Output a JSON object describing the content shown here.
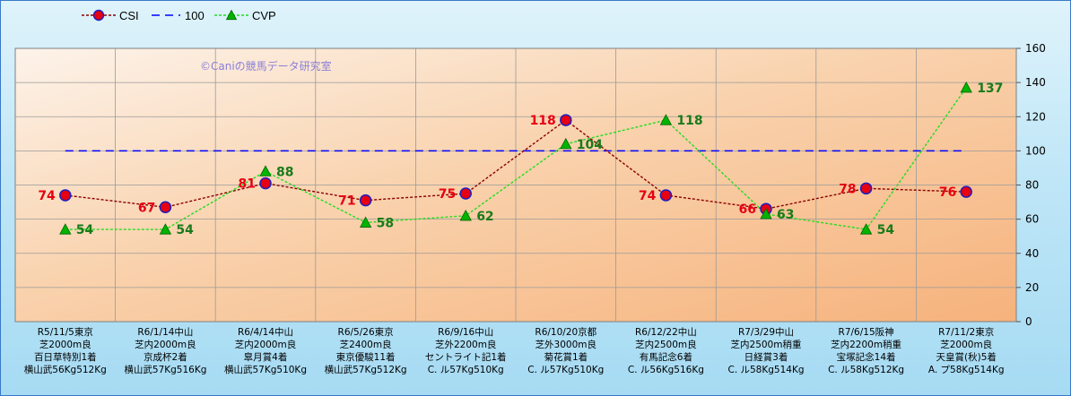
{
  "chart_data": {
    "type": "line",
    "title": "",
    "watermark": "©Caniの競馬データ研究室",
    "ylim": [
      0,
      160
    ],
    "yticks": [
      0,
      20,
      40,
      60,
      80,
      100,
      120,
      140,
      160
    ],
    "grid": true,
    "legend_position": "top-left",
    "categories": [
      [
        "R5/11/5東京",
        "芝2000m良",
        "百日草特別1着",
        "横山武56Kg512Kg"
      ],
      [
        "R6/1/14中山",
        "芝内2000m良",
        "京成杯2着",
        "横山武57Kg516Kg"
      ],
      [
        "R6/4/14中山",
        "芝内2000m良",
        "皐月賞4着",
        "横山武57Kg510Kg"
      ],
      [
        "R6/5/26東京",
        "芝2400m良",
        "東京優駿11着",
        "横山武57Kg512Kg"
      ],
      [
        "R6/9/16中山",
        "芝外2200m良",
        "セントライト記1着",
        "C. ル57Kg510Kg"
      ],
      [
        "R6/10/20京都",
        "芝外3000m良",
        "菊花賞1着",
        "C. ル57Kg510Kg"
      ],
      [
        "R6/12/22中山",
        "芝内2500m良",
        "有馬記念6着",
        "C. ル56Kg516Kg"
      ],
      [
        "R7/3/29中山",
        "芝内2500m稍重",
        "日経賞3着",
        "C. ル58Kg514Kg"
      ],
      [
        "R7/6/15阪神",
        "芝内2200m稍重",
        "宝塚記念14着",
        "C. ル58Kg512Kg"
      ],
      [
        "R7/11/2東京",
        "芝2000m良",
        "天皇賞(秋)5着",
        "A. プ58Kg514Kg"
      ]
    ],
    "series": [
      {
        "name": "CSI",
        "values": [
          74,
          67,
          81,
          71,
          75,
          118,
          74,
          66,
          78,
          76
        ],
        "color": "#8b0000",
        "marker_fill": "#e60012",
        "marker_edge": "#1f1fbf"
      },
      {
        "name": "100",
        "values": [
          100,
          100,
          100,
          100,
          100,
          100,
          100,
          100,
          100,
          100
        ],
        "color": "#0000ff"
      },
      {
        "name": "CVP",
        "values": [
          54,
          54,
          88,
          58,
          62,
          104,
          118,
          63,
          54,
          137
        ],
        "color": "#22dd22",
        "marker_fill": "#00b400"
      }
    ]
  }
}
